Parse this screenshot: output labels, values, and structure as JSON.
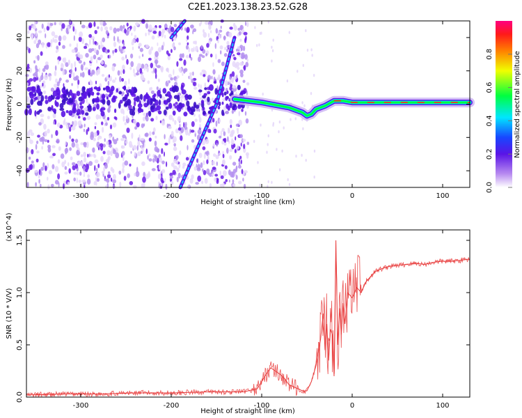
{
  "title": "C2E1.2023.138.23.52.G28",
  "chart_data": [
    {
      "type": "heatmap",
      "title": "C2E1.2023.138.23.52.G28",
      "xlabel": "Height of straight line (km)",
      "ylabel": "Frequency (Hz)",
      "xlim": [
        -360,
        130
      ],
      "ylim": [
        -50,
        50
      ],
      "x_ticks": [
        -300,
        -200,
        -100,
        0,
        100
      ],
      "y_ticks": [
        -40,
        -20,
        0,
        20,
        40
      ],
      "colorbar": {
        "label": "Normalized spectral amplitude",
        "range": [
          0.0,
          1.0
        ],
        "ticks": [
          "0.0",
          "0.2",
          "0.4",
          "0.6",
          "0.8"
        ],
        "placement": "right"
      },
      "features": [
        {
          "name": "carrier",
          "x": [
            -130,
            -100,
            -80,
            -70,
            -55,
            -50,
            -45,
            -40,
            -30,
            -20,
            -10,
            0,
            50,
            130
          ],
          "y": [
            3,
            1,
            -1,
            -2,
            -5,
            -7,
            -6,
            -3,
            -1,
            2,
            2,
            1,
            1,
            1
          ]
        },
        {
          "name": "diagonal-streak",
          "x": [
            -190,
            -150,
            -130
          ],
          "y": [
            -50,
            0,
            40
          ]
        },
        {
          "name": "diagonal-streak",
          "x": [
            -200,
            -185
          ],
          "y": [
            40,
            50
          ]
        }
      ]
    },
    {
      "type": "line",
      "xlabel": "Height of straight line (km)",
      "ylabel": "SNR (10 * V/V)",
      "y_multiplier": "(x10^4)",
      "xlim": [
        -360,
        130
      ],
      "ylim": [
        0.0,
        1.6
      ],
      "x_ticks": [
        -300,
        -200,
        -100,
        0,
        100
      ],
      "y_ticks": [
        0.0,
        0.5,
        1.0,
        1.5
      ],
      "y_ticklabels": [
        "0.0",
        "0.5",
        "1.0",
        "1.5"
      ],
      "color": "#e83a3a",
      "x": [
        -360,
        -320,
        -280,
        -240,
        -200,
        -160,
        -120,
        -105,
        -100,
        -95,
        -90,
        -85,
        -80,
        -75,
        -70,
        -65,
        -60,
        -55,
        -50,
        -45,
        -40,
        -35,
        -32,
        -30,
        -28,
        -26,
        -24,
        -22,
        -20,
        -18,
        -16,
        -14,
        -12,
        -10,
        -8,
        -5,
        0,
        5,
        10,
        15,
        20,
        25,
        30,
        40,
        50,
        60,
        70,
        80,
        90,
        100,
        110,
        120,
        130
      ],
      "y": [
        0.02,
        0.03,
        0.03,
        0.04,
        0.04,
        0.05,
        0.05,
        0.08,
        0.15,
        0.22,
        0.28,
        0.25,
        0.22,
        0.18,
        0.12,
        0.1,
        0.08,
        0.06,
        0.06,
        0.15,
        0.3,
        0.55,
        0.8,
        0.45,
        0.7,
        0.35,
        0.65,
        0.6,
        0.2,
        1.5,
        0.5,
        0.85,
        0.6,
        0.9,
        0.7,
        1.0,
        0.95,
        1.05,
        1.0,
        1.1,
        1.15,
        1.2,
        1.22,
        1.25,
        1.26,
        1.27,
        1.28,
        1.27,
        1.29,
        1.3,
        1.3,
        1.31,
        1.32
      ]
    }
  ]
}
